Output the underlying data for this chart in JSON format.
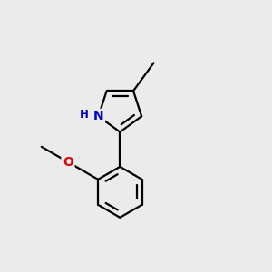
{
  "background_color": "#ebebeb",
  "bond_color": "#000000",
  "bond_width": 1.6,
  "atom_labels": {
    "N": {
      "color": "#0000cc",
      "fontsize": 10,
      "fontweight": "bold"
    },
    "O": {
      "color": "#dd0000",
      "fontsize": 10,
      "fontweight": "bold"
    },
    "H_N": {
      "color": "#0000cc",
      "fontsize": 8.5,
      "fontweight": "bold"
    }
  },
  "fig_size": [
    3.0,
    3.0
  ],
  "dpi": 100
}
